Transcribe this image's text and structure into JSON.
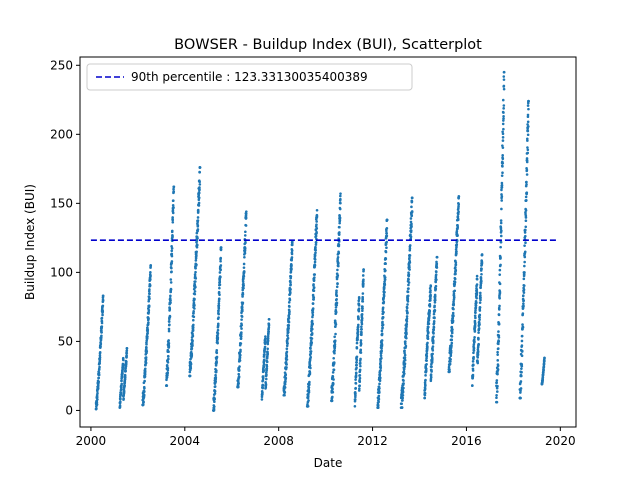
{
  "chart_data": {
    "type": "scatter",
    "title": "BOWSER - Buildup Index (BUI), Scatterplot",
    "xlabel": "Date",
    "ylabel": "Buildup Index (BUI)",
    "xlim": [
      "1999-07-15",
      "2020-09-01"
    ],
    "ylim": [
      -12,
      256
    ],
    "x_ticks": [
      "2000",
      "2004",
      "2008",
      "2012",
      "2016",
      "2020"
    ],
    "y_ticks": [
      0,
      50,
      100,
      150,
      200,
      250
    ],
    "grid": false,
    "legend": {
      "placement": "top-left"
    },
    "point_color": "#1f77b4",
    "reference_line": {
      "label": "90th percentile : 123.33130035400389",
      "value": 123.33130035400389,
      "color": "#0000cc",
      "style": "dashed",
      "x_range": [
        "2000-01-01",
        "2019-11-15"
      ]
    },
    "seasons": [
      {
        "start": "2000-03-20",
        "end": "2000-07-10",
        "min": 1,
        "max": 83,
        "profile": "rise"
      },
      {
        "start": "2001-03-25",
        "end": "2001-07-15",
        "min": 2,
        "max": 45,
        "profile": "double"
      },
      {
        "start": "2002-03-15",
        "end": "2002-07-20",
        "min": 4,
        "max": 105,
        "profile": "rise"
      },
      {
        "start": "2003-03-20",
        "end": "2003-07-15",
        "min": 18,
        "max": 162,
        "profile": "rise"
      },
      {
        "start": "2004-03-15",
        "end": "2004-08-25",
        "min": 25,
        "max": 176,
        "profile": "rise"
      },
      {
        "start": "2005-03-20",
        "end": "2005-07-20",
        "min": 0,
        "max": 118,
        "profile": "rise"
      },
      {
        "start": "2006-04-01",
        "end": "2006-08-15",
        "min": 17,
        "max": 144,
        "profile": "rise"
      },
      {
        "start": "2007-04-15",
        "end": "2007-08-05",
        "min": 8,
        "max": 66,
        "profile": "double"
      },
      {
        "start": "2008-03-20",
        "end": "2008-08-01",
        "min": 11,
        "max": 122,
        "profile": "rise"
      },
      {
        "start": "2009-03-20",
        "end": "2009-08-20",
        "min": 3,
        "max": 145,
        "profile": "rise"
      },
      {
        "start": "2010-04-01",
        "end": "2010-08-20",
        "min": 7,
        "max": 157,
        "profile": "rise"
      },
      {
        "start": "2011-04-01",
        "end": "2011-08-15",
        "min": 3,
        "max": 102,
        "profile": "double"
      },
      {
        "start": "2012-03-20",
        "end": "2012-08-15",
        "min": 2,
        "max": 138,
        "profile": "rise"
      },
      {
        "start": "2013-03-20",
        "end": "2013-09-10",
        "min": 2,
        "max": 154,
        "profile": "rise"
      },
      {
        "start": "2014-03-20",
        "end": "2014-10-01",
        "min": 9,
        "max": 111,
        "profile": "double"
      },
      {
        "start": "2015-04-01",
        "end": "2015-09-05",
        "min": 28,
        "max": 155,
        "profile": "rise"
      },
      {
        "start": "2016-04-01",
        "end": "2016-09-01",
        "min": 18,
        "max": 113,
        "profile": "double"
      },
      {
        "start": "2017-04-10",
        "end": "2017-08-10",
        "min": 6,
        "max": 245,
        "profile": "rise"
      },
      {
        "start": "2018-04-10",
        "end": "2018-08-25",
        "min": 9,
        "max": 224,
        "profile": "rise"
      },
      {
        "start": "2019-03-20",
        "end": "2019-04-30",
        "min": 19,
        "max": 38,
        "profile": "rise"
      }
    ]
  }
}
